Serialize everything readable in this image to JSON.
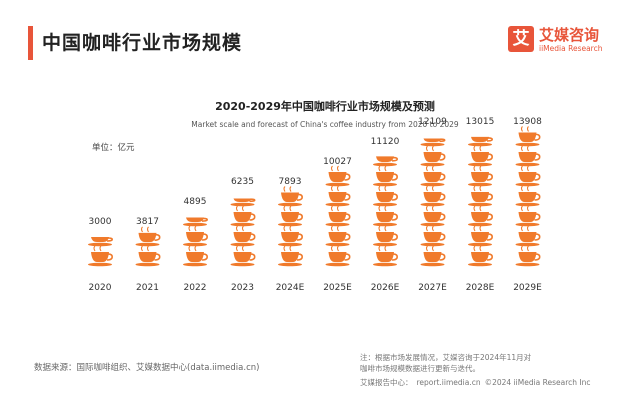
{
  "colors": {
    "accent": "#e8553a",
    "cup": "#f07a2b",
    "text": "#333333"
  },
  "header": {
    "title": "中国咖啡行业市场规模"
  },
  "logo": {
    "name_cn": "艾媒咨询",
    "name_en": "iiMedia Research",
    "mark": "艾"
  },
  "chart_data": {
    "type": "pictogram",
    "title": "2020-2029年中国咖啡行业市场规模及预测",
    "subtitle": "Market scale and forecast of China's coffee industry from 2020 to 2029",
    "unit_label": "单位：亿元",
    "categories": [
      "2020",
      "2021",
      "2022",
      "2023",
      "2024E",
      "2025E",
      "2026E",
      "2027E",
      "2028E",
      "2029E"
    ],
    "values": [
      3000,
      3817,
      4895,
      6235,
      7893,
      10027,
      11120,
      12109,
      13015,
      13908
    ],
    "value_labels": [
      "3000",
      "3817",
      "4895",
      "6235",
      "7893",
      "10027",
      "11120",
      "12109",
      "13015",
      "13908"
    ],
    "units_per_icon": 2000
  },
  "footer": {
    "source": "数据来源：国际咖啡组织、艾媒数据中心(data.iimedia.cn)",
    "note_line1": "注：根据市场发展情况，艾媒咨询于2024年11月对",
    "note_line2": "咖啡市场规模数据进行更新与迭代。",
    "report_label": "艾媒报告中心：",
    "report_url": "report.iimedia.cn",
    "copyright": "©2024 iiMedia Research Inc"
  }
}
